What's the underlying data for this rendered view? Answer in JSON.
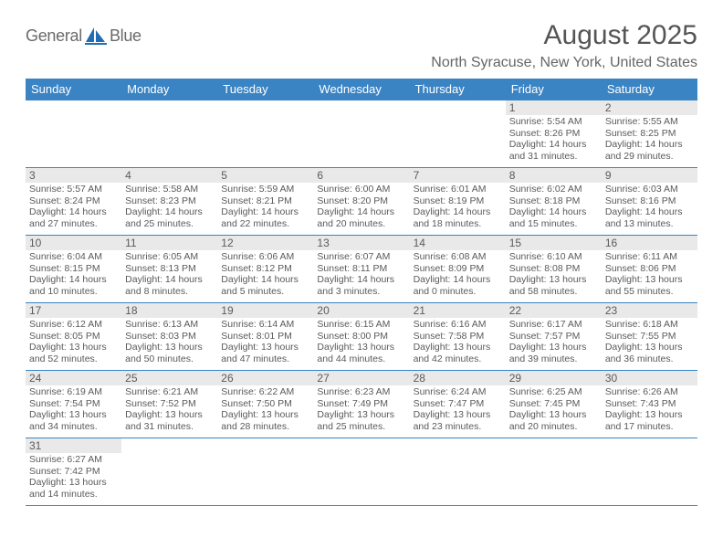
{
  "brand": {
    "name1": "General",
    "name2": "Blue"
  },
  "title": "August 2025",
  "location": "North Syracuse, New York, United States",
  "colors": {
    "header_bg": "#3b84c4",
    "header_text": "#ffffff",
    "daynum_bg": "#e9e9e9",
    "text": "#5a5a5a",
    "border": "#3b84c4",
    "logo_blue": "#1e6db5"
  },
  "weekdays": [
    "Sunday",
    "Monday",
    "Tuesday",
    "Wednesday",
    "Thursday",
    "Friday",
    "Saturday"
  ],
  "weeks": [
    [
      null,
      null,
      null,
      null,
      null,
      {
        "n": "1",
        "sr": "Sunrise: 5:54 AM",
        "ss": "Sunset: 8:26 PM",
        "dl1": "Daylight: 14 hours",
        "dl2": "and 31 minutes."
      },
      {
        "n": "2",
        "sr": "Sunrise: 5:55 AM",
        "ss": "Sunset: 8:25 PM",
        "dl1": "Daylight: 14 hours",
        "dl2": "and 29 minutes."
      }
    ],
    [
      {
        "n": "3",
        "sr": "Sunrise: 5:57 AM",
        "ss": "Sunset: 8:24 PM",
        "dl1": "Daylight: 14 hours",
        "dl2": "and 27 minutes."
      },
      {
        "n": "4",
        "sr": "Sunrise: 5:58 AM",
        "ss": "Sunset: 8:23 PM",
        "dl1": "Daylight: 14 hours",
        "dl2": "and 25 minutes."
      },
      {
        "n": "5",
        "sr": "Sunrise: 5:59 AM",
        "ss": "Sunset: 8:21 PM",
        "dl1": "Daylight: 14 hours",
        "dl2": "and 22 minutes."
      },
      {
        "n": "6",
        "sr": "Sunrise: 6:00 AM",
        "ss": "Sunset: 8:20 PM",
        "dl1": "Daylight: 14 hours",
        "dl2": "and 20 minutes."
      },
      {
        "n": "7",
        "sr": "Sunrise: 6:01 AM",
        "ss": "Sunset: 8:19 PM",
        "dl1": "Daylight: 14 hours",
        "dl2": "and 18 minutes."
      },
      {
        "n": "8",
        "sr": "Sunrise: 6:02 AM",
        "ss": "Sunset: 8:18 PM",
        "dl1": "Daylight: 14 hours",
        "dl2": "and 15 minutes."
      },
      {
        "n": "9",
        "sr": "Sunrise: 6:03 AM",
        "ss": "Sunset: 8:16 PM",
        "dl1": "Daylight: 14 hours",
        "dl2": "and 13 minutes."
      }
    ],
    [
      {
        "n": "10",
        "sr": "Sunrise: 6:04 AM",
        "ss": "Sunset: 8:15 PM",
        "dl1": "Daylight: 14 hours",
        "dl2": "and 10 minutes."
      },
      {
        "n": "11",
        "sr": "Sunrise: 6:05 AM",
        "ss": "Sunset: 8:13 PM",
        "dl1": "Daylight: 14 hours",
        "dl2": "and 8 minutes."
      },
      {
        "n": "12",
        "sr": "Sunrise: 6:06 AM",
        "ss": "Sunset: 8:12 PM",
        "dl1": "Daylight: 14 hours",
        "dl2": "and 5 minutes."
      },
      {
        "n": "13",
        "sr": "Sunrise: 6:07 AM",
        "ss": "Sunset: 8:11 PM",
        "dl1": "Daylight: 14 hours",
        "dl2": "and 3 minutes."
      },
      {
        "n": "14",
        "sr": "Sunrise: 6:08 AM",
        "ss": "Sunset: 8:09 PM",
        "dl1": "Daylight: 14 hours",
        "dl2": "and 0 minutes."
      },
      {
        "n": "15",
        "sr": "Sunrise: 6:10 AM",
        "ss": "Sunset: 8:08 PM",
        "dl1": "Daylight: 13 hours",
        "dl2": "and 58 minutes."
      },
      {
        "n": "16",
        "sr": "Sunrise: 6:11 AM",
        "ss": "Sunset: 8:06 PM",
        "dl1": "Daylight: 13 hours",
        "dl2": "and 55 minutes."
      }
    ],
    [
      {
        "n": "17",
        "sr": "Sunrise: 6:12 AM",
        "ss": "Sunset: 8:05 PM",
        "dl1": "Daylight: 13 hours",
        "dl2": "and 52 minutes."
      },
      {
        "n": "18",
        "sr": "Sunrise: 6:13 AM",
        "ss": "Sunset: 8:03 PM",
        "dl1": "Daylight: 13 hours",
        "dl2": "and 50 minutes."
      },
      {
        "n": "19",
        "sr": "Sunrise: 6:14 AM",
        "ss": "Sunset: 8:01 PM",
        "dl1": "Daylight: 13 hours",
        "dl2": "and 47 minutes."
      },
      {
        "n": "20",
        "sr": "Sunrise: 6:15 AM",
        "ss": "Sunset: 8:00 PM",
        "dl1": "Daylight: 13 hours",
        "dl2": "and 44 minutes."
      },
      {
        "n": "21",
        "sr": "Sunrise: 6:16 AM",
        "ss": "Sunset: 7:58 PM",
        "dl1": "Daylight: 13 hours",
        "dl2": "and 42 minutes."
      },
      {
        "n": "22",
        "sr": "Sunrise: 6:17 AM",
        "ss": "Sunset: 7:57 PM",
        "dl1": "Daylight: 13 hours",
        "dl2": "and 39 minutes."
      },
      {
        "n": "23",
        "sr": "Sunrise: 6:18 AM",
        "ss": "Sunset: 7:55 PM",
        "dl1": "Daylight: 13 hours",
        "dl2": "and 36 minutes."
      }
    ],
    [
      {
        "n": "24",
        "sr": "Sunrise: 6:19 AM",
        "ss": "Sunset: 7:54 PM",
        "dl1": "Daylight: 13 hours",
        "dl2": "and 34 minutes."
      },
      {
        "n": "25",
        "sr": "Sunrise: 6:21 AM",
        "ss": "Sunset: 7:52 PM",
        "dl1": "Daylight: 13 hours",
        "dl2": "and 31 minutes."
      },
      {
        "n": "26",
        "sr": "Sunrise: 6:22 AM",
        "ss": "Sunset: 7:50 PM",
        "dl1": "Daylight: 13 hours",
        "dl2": "and 28 minutes."
      },
      {
        "n": "27",
        "sr": "Sunrise: 6:23 AM",
        "ss": "Sunset: 7:49 PM",
        "dl1": "Daylight: 13 hours",
        "dl2": "and 25 minutes."
      },
      {
        "n": "28",
        "sr": "Sunrise: 6:24 AM",
        "ss": "Sunset: 7:47 PM",
        "dl1": "Daylight: 13 hours",
        "dl2": "and 23 minutes."
      },
      {
        "n": "29",
        "sr": "Sunrise: 6:25 AM",
        "ss": "Sunset: 7:45 PM",
        "dl1": "Daylight: 13 hours",
        "dl2": "and 20 minutes."
      },
      {
        "n": "30",
        "sr": "Sunrise: 6:26 AM",
        "ss": "Sunset: 7:43 PM",
        "dl1": "Daylight: 13 hours",
        "dl2": "and 17 minutes."
      }
    ],
    [
      {
        "n": "31",
        "sr": "Sunrise: 6:27 AM",
        "ss": "Sunset: 7:42 PM",
        "dl1": "Daylight: 13 hours",
        "dl2": "and 14 minutes."
      },
      null,
      null,
      null,
      null,
      null,
      null
    ]
  ]
}
